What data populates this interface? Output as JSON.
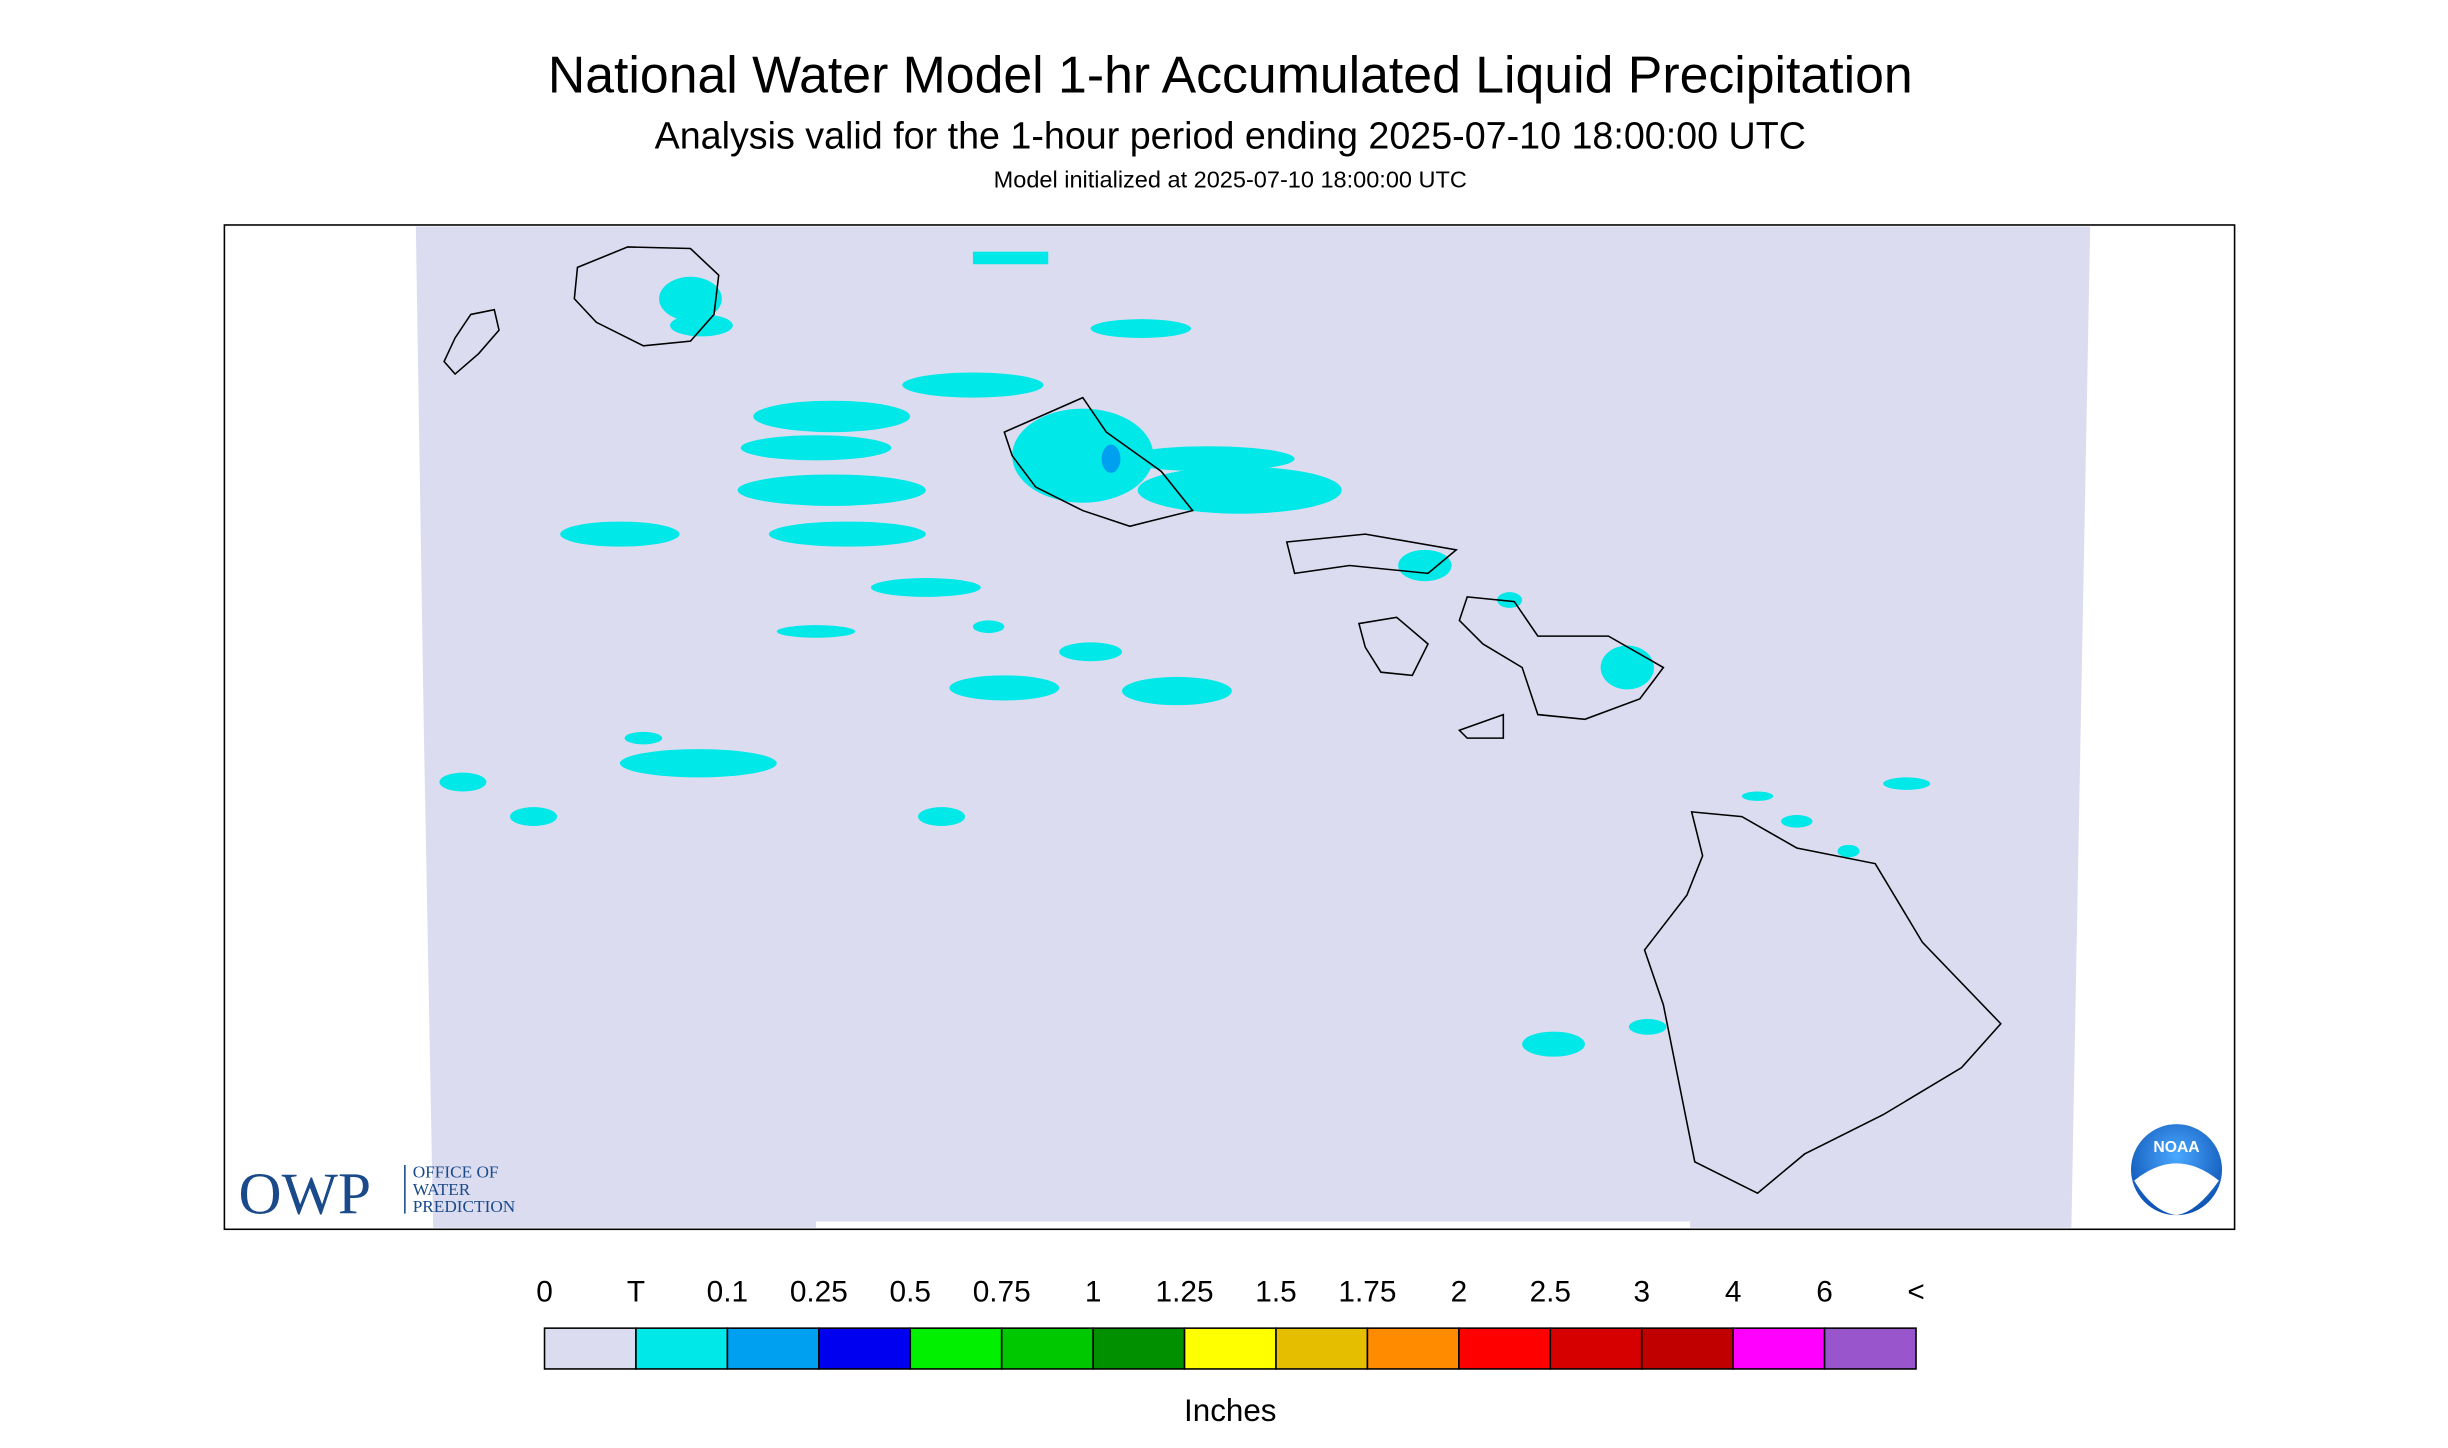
{
  "header": {
    "title": "National Water Model 1-hr Accumulated Liquid Precipitation",
    "subtitle": "Analysis valid for the 1-hour period ending 2025-07-10 18:00:00 UTC",
    "note": "Model initialized at 2025-07-10 18:00:00 UTC"
  },
  "legend": {
    "labels": [
      "0",
      "T",
      "0.1",
      "0.25",
      "0.5",
      "0.75",
      "1",
      "1.25",
      "1.5",
      "1.75",
      "2",
      "2.5",
      "3",
      "4",
      "6",
      "<"
    ],
    "colors": [
      "#dcdcf0",
      "#00e8e8",
      "#00a0f0",
      "#0000f0",
      "#00f000",
      "#00c800",
      "#009000",
      "#ffff00",
      "#e6be00",
      "#ff8c00",
      "#ff0000",
      "#d60000",
      "#c00000",
      "#ff00ff",
      "#9955cc"
    ],
    "unit": "Inches"
  },
  "logos": {
    "owp": "OWP",
    "owp_lines": [
      "OFFICE OF",
      "WATER",
      "PREDICTION"
    ],
    "noaa": "NOAA"
  }
}
